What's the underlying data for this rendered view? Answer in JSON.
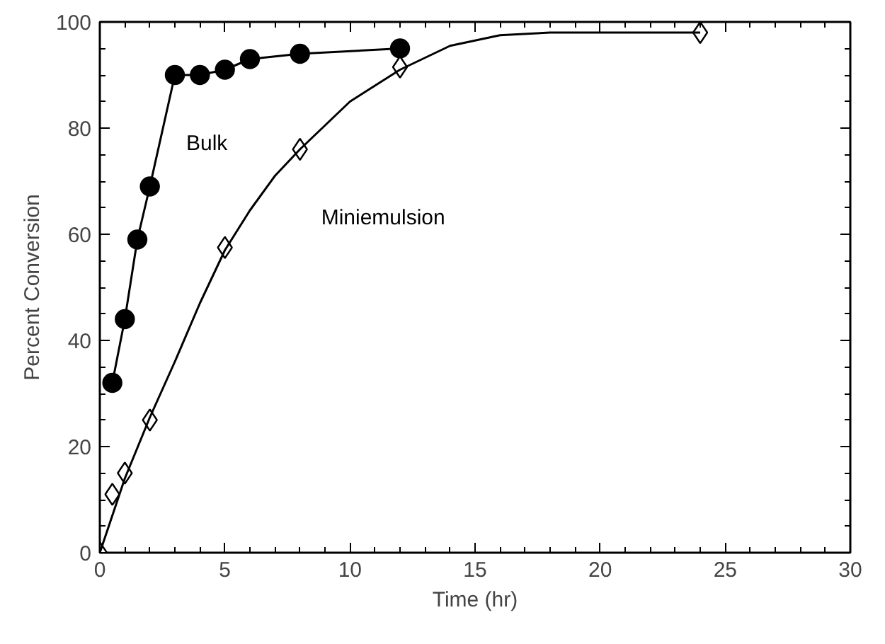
{
  "chart_data": {
    "type": "line",
    "xlabel": "Time (hr)",
    "ylabel": "Percent Conversion",
    "xlim": [
      0,
      30
    ],
    "ylim": [
      0,
      100
    ],
    "xticks": [
      0,
      5,
      10,
      15,
      20,
      25,
      30
    ],
    "yticks": [
      0,
      20,
      40,
      60,
      80,
      100
    ],
    "grid": false,
    "series": [
      {
        "name": "Bulk",
        "marker": "circle",
        "color": "#000000",
        "x": [
          0.5,
          1,
          1.5,
          2,
          3,
          4,
          5,
          6,
          8,
          12
        ],
        "values": [
          32,
          44,
          59,
          69,
          90,
          90,
          91,
          93,
          94,
          95
        ]
      },
      {
        "name": "Miniemulsion",
        "type": "scatter",
        "marker": "diamond",
        "color": "#000000",
        "x": [
          0,
          0.5,
          1,
          2,
          5,
          8,
          12,
          24
        ],
        "values": [
          0,
          11,
          15,
          25,
          57.5,
          76,
          91.5,
          98
        ]
      },
      {
        "type": "line",
        "marker": "none",
        "color": "#000000",
        "x": [
          0,
          1,
          2,
          3,
          4,
          5,
          6,
          7,
          8,
          10,
          12,
          14,
          16,
          18,
          24
        ],
        "values": [
          0,
          14,
          25.5,
          36,
          47,
          57,
          64.5,
          71,
          76,
          85,
          91,
          95.5,
          97.5,
          98,
          98
        ]
      }
    ]
  }
}
